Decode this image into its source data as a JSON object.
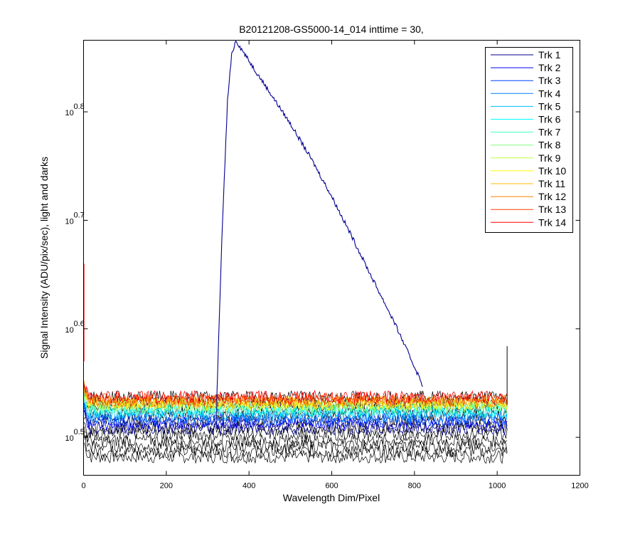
{
  "chart_data": {
    "type": "line",
    "title": "B20121208-GS5000-14_014 inttime = 30,",
    "xlabel": "Wavelength Dim/Pixel",
    "ylabel": "Signal Intensity (ADU/pix/sec), light and darks",
    "xlim": [
      0,
      1200
    ],
    "ylim": [
      0.465,
      0.866
    ],
    "y_scale": "log",
    "x_ticks": [
      0,
      200,
      400,
      600,
      800,
      1000,
      1200
    ],
    "x_tick_labels": [
      "0",
      "200",
      "400",
      "600",
      "800",
      "1000",
      "1200"
    ],
    "y_ticks": [
      {
        "value": 0.5,
        "base": "10",
        "exp": "0.5"
      },
      {
        "value": 0.6,
        "base": "10",
        "exp": "0.6"
      },
      {
        "value": 0.7,
        "base": "10",
        "exp": "0.7"
      },
      {
        "value": 0.8,
        "base": "10",
        "exp": "0.8"
      }
    ],
    "grid": false,
    "legend_position": "top-right",
    "pixel_range": [
      1,
      1024
    ],
    "series": [
      {
        "name": "Trk 1",
        "color": "#00008f",
        "noise_level": 0.508,
        "peak": {
          "start": 322,
          "max_at": 368,
          "max": 0.866,
          "end": 820,
          "profile_x": [
            322,
            335,
            348,
            358,
            368,
            400,
            450,
            500,
            550,
            600,
            650,
            700,
            750,
            800,
            820
          ],
          "profile_y": [
            0.535,
            0.69,
            0.81,
            0.852,
            0.866,
            0.847,
            0.818,
            0.789,
            0.757,
            0.722,
            0.684,
            0.645,
            0.607,
            0.565,
            0.548
          ]
        }
      },
      {
        "name": "Trk 2",
        "color": "#0000ff",
        "noise_level": 0.513
      },
      {
        "name": "Trk 3",
        "color": "#0040ff",
        "noise_level": 0.516
      },
      {
        "name": "Trk 4",
        "color": "#0080ff",
        "noise_level": 0.519
      },
      {
        "name": "Trk 5",
        "color": "#00bfff",
        "noise_level": 0.522
      },
      {
        "name": "Trk 6",
        "color": "#00ffff",
        "noise_level": 0.524
      },
      {
        "name": "Trk 7",
        "color": "#40ffbf",
        "noise_level": 0.526
      },
      {
        "name": "Trk 8",
        "color": "#80ff80",
        "noise_level": 0.528
      },
      {
        "name": "Trk 9",
        "color": "#bfff40",
        "noise_level": 0.53
      },
      {
        "name": "Trk 10",
        "color": "#ffff00",
        "noise_level": 0.531
      },
      {
        "name": "Trk 11",
        "color": "#ffbf00",
        "noise_level": 0.532
      },
      {
        "name": "Trk 12",
        "color": "#ff8000",
        "noise_level": 0.533
      },
      {
        "name": "Trk 13",
        "color": "#ff4000",
        "noise_level": 0.535
      },
      {
        "name": "Trk 14",
        "color": "#ff0000",
        "noise_level": 0.537
      }
    ],
    "dark_traces": {
      "color": "#000000",
      "levels": [
        0.482,
        0.487,
        0.492,
        0.497,
        0.503,
        0.509,
        0.515,
        0.521,
        0.527,
        0.532,
        0.537
      ]
    }
  }
}
